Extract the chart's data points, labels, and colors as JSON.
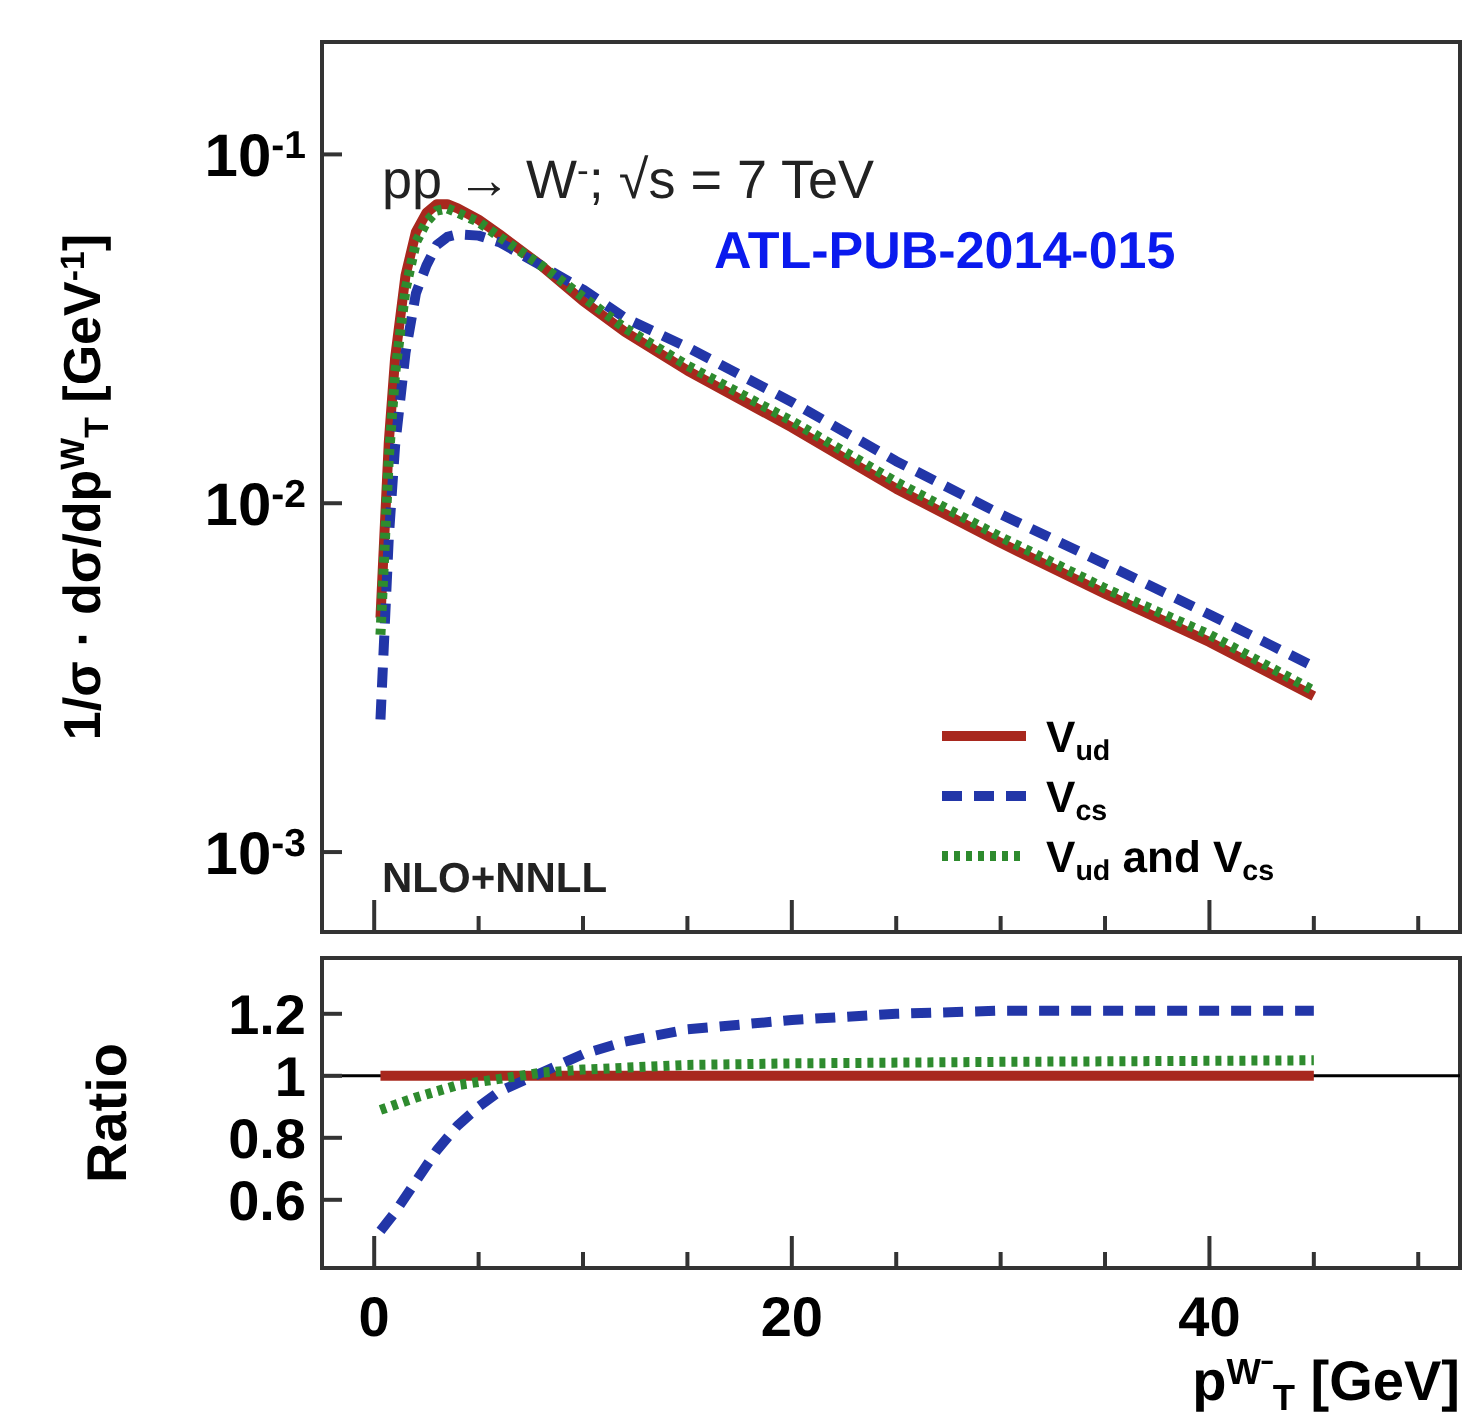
{
  "chart_data": [
    {
      "type": "line",
      "ylabel": "1/σ · dσ/dp$^{W}$$_{T}$ [GeV$^{-1}$]",
      "annotations": [
        "pp → W$^{-}$; √s = 7 TeV",
        "ATL-PUB-2014-015",
        "NLO+NNLL"
      ],
      "log": true,
      "legend": "bottom right",
      "tick_labels": "y",
      "xlim": [
        -2.5,
        52
      ],
      "xticks": [
        0,
        {
          "value": 5,
          "label": null
        },
        {
          "value": 10,
          "label": null
        },
        {
          "value": 15,
          "label": null
        },
        20,
        {
          "value": 25,
          "label": null
        },
        {
          "value": 30,
          "label": null
        },
        {
          "value": 35,
          "label": null
        },
        40,
        {
          "value": 45,
          "label": null
        },
        {
          "value": 50,
          "label": null
        }
      ],
      "ylim": [
        0.00059,
        0.21
      ],
      "yticks": [
        {
          "value": 0.001,
          "label": "10$^{-3}$"
        },
        {
          "value": 0.01,
          "label": "10$^{-2}$"
        },
        {
          "value": 0.1,
          "label": "10$^{-1}$"
        }
      ],
      "x": [
        0.3,
        0.7,
        1,
        1.5,
        2,
        2.5,
        3,
        3.5,
        4,
        5,
        6,
        8,
        10,
        12,
        15,
        20,
        25,
        30,
        35,
        40,
        45
      ],
      "series": [
        {
          "name": "V$_{ud}$",
          "color": "#a8281e",
          "line_style": "solid",
          "values": [
            0.0047,
            0.015,
            0.026,
            0.045,
            0.06,
            0.068,
            0.072,
            0.072,
            0.07,
            0.065,
            0.059,
            0.048,
            0.038,
            0.031,
            0.024,
            0.0165,
            0.011,
            0.0077,
            0.0055,
            0.004,
            0.0028
          ]
        },
        {
          "name": "V$_{cs}$",
          "color": "#2236a8",
          "line_style": "dashed",
          "values": [
            0.0024,
            0.008,
            0.0146,
            0.027,
            0.04,
            0.048,
            0.055,
            0.058,
            0.059,
            0.0585,
            0.056,
            0.048,
            0.041,
            0.034,
            0.028,
            0.0195,
            0.0132,
            0.0093,
            0.0067,
            0.0048,
            0.0034
          ]
        },
        {
          "name": "V$_{ud}$ and V$_{cs}$",
          "color": "#2e8b2e",
          "line_style": "dotted",
          "values": [
            0.0042,
            0.0135,
            0.0235,
            0.041,
            0.056,
            0.064,
            0.069,
            0.07,
            0.068,
            0.064,
            0.058,
            0.048,
            0.039,
            0.0318,
            0.0248,
            0.0172,
            0.0115,
            0.008,
            0.0057,
            0.0042,
            0.0029
          ]
        }
      ]
    },
    {
      "type": "line",
      "ylabel": "Ratio",
      "xlabel": "p$^{W⁻}$$_{T}$ [GeV]",
      "xlim": [
        -2.5,
        52
      ],
      "xticks": [
        0,
        {
          "value": 5,
          "label": null
        },
        {
          "value": 10,
          "label": null
        },
        {
          "value": 15,
          "label": null
        },
        20,
        {
          "value": 25,
          "label": null
        },
        {
          "value": 30,
          "label": null
        },
        {
          "value": 35,
          "label": null
        },
        40,
        {
          "value": 45,
          "label": null
        },
        {
          "value": 50,
          "label": null
        }
      ],
      "ylim": [
        0.38,
        1.38
      ],
      "yticks": [
        0.6,
        0.8,
        1,
        1.2
      ],
      "ref_lines": [
        {
          "axis": "y",
          "value": 1,
          "color": "#000000"
        }
      ],
      "series": [
        {
          "color": "#a8281e",
          "line_style": "solid",
          "x": [
            0.3,
            45
          ],
          "values": [
            1,
            1
          ]
        },
        {
          "color": "#2236a8",
          "line_style": "dashed",
          "x": [
            0.3,
            1,
            2,
            3,
            4,
            5,
            6,
            8,
            10,
            12,
            15,
            20,
            25,
            30,
            35,
            40,
            45
          ],
          "values": [
            0.5,
            0.56,
            0.66,
            0.76,
            0.84,
            0.9,
            0.95,
            1.01,
            1.07,
            1.11,
            1.15,
            1.18,
            1.2,
            1.21,
            1.21,
            1.21,
            1.21
          ]
        },
        {
          "color": "#2e8b2e",
          "line_style": "dotted",
          "x": [
            0.3,
            2,
            4,
            6,
            8,
            10,
            15,
            20,
            30,
            45
          ],
          "values": [
            0.89,
            0.93,
            0.97,
            0.99,
            1.01,
            1.02,
            1.035,
            1.04,
            1.045,
            1.05
          ]
        }
      ]
    }
  ]
}
